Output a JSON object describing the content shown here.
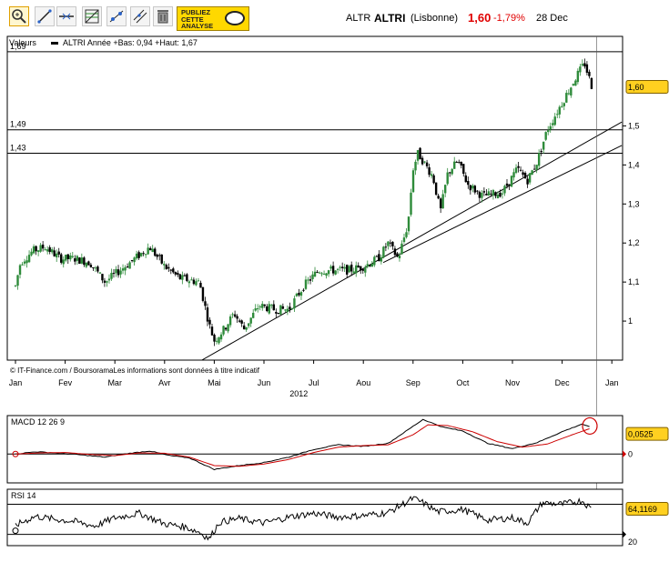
{
  "toolbar": {
    "tools": [
      {
        "icon": "zoom-icon",
        "active": true
      },
      {
        "icon": "line-draw-icon",
        "active": false
      },
      {
        "icon": "horizontal-line-icon",
        "active": false
      },
      {
        "icon": "fibonacci-icon",
        "active": false
      },
      {
        "icon": "point-line-icon",
        "active": false
      },
      {
        "icon": "parallel-line-icon",
        "active": false
      },
      {
        "icon": "trash-icon",
        "active": false
      }
    ],
    "ad_lines": [
      "PUBLIEZ",
      "CETTE",
      "ANALYSE"
    ]
  },
  "quote": {
    "code": "ALTR",
    "name": "ALTRI",
    "market": "(Lisbonne)",
    "price": "1,60",
    "change": "-1,79%",
    "date": "28 Dec"
  },
  "colors": {
    "price_pill": "#ffd020",
    "negative": "#e00000",
    "signal_line": "#cc0000",
    "candle_up": "#2e8b3a",
    "candle_down": "#000000"
  },
  "chart_data": [
    {
      "type": "candlestick",
      "title": "Valeurs",
      "legend_text": "ALTRI  Année +Bas: 0,94 +Haut: 1,67",
      "ylim": [
        0.9,
        1.72
      ],
      "x_months": [
        "Jan",
        "Fev",
        "Mar",
        "Avr",
        "Mai",
        "Jun",
        "Jul",
        "Aou",
        "Sep",
        "Oct",
        "Nov",
        "Dec",
        "Jan"
      ],
      "x_year_label": "2012",
      "y_ticks": [
        {
          "v": 1.5,
          "label": "1,5"
        },
        {
          "v": 1.4,
          "label": "1,4"
        },
        {
          "v": 1.3,
          "label": "1,3"
        },
        {
          "v": 1.2,
          "label": "1,2"
        },
        {
          "v": 1.1,
          "label": "1,1"
        },
        {
          "v": 1.0,
          "label": "1"
        }
      ],
      "levels": [
        {
          "v": 1.69,
          "label": "1,69"
        },
        {
          "v": 1.49,
          "label": "1,49"
        },
        {
          "v": 1.43,
          "label": "1,43"
        }
      ],
      "last_value": "1,60",
      "price_path": [
        {
          "m": 0.0,
          "v": 1.09
        },
        {
          "m": 0.1,
          "v": 1.15
        },
        {
          "m": 0.35,
          "v": 1.18
        },
        {
          "m": 0.6,
          "v": 1.19
        },
        {
          "m": 0.9,
          "v": 1.16
        },
        {
          "m": 1.2,
          "v": 1.16
        },
        {
          "m": 1.5,
          "v": 1.15
        },
        {
          "m": 1.8,
          "v": 1.1
        },
        {
          "m": 2.1,
          "v": 1.13
        },
        {
          "m": 2.5,
          "v": 1.17
        },
        {
          "m": 2.7,
          "v": 1.19
        },
        {
          "m": 3.0,
          "v": 1.14
        },
        {
          "m": 3.3,
          "v": 1.11
        },
        {
          "m": 3.7,
          "v": 1.1
        },
        {
          "m": 3.9,
          "v": 0.99
        },
        {
          "m": 4.0,
          "v": 0.95
        },
        {
          "m": 4.2,
          "v": 0.98
        },
        {
          "m": 4.4,
          "v": 1.02
        },
        {
          "m": 4.6,
          "v": 0.98
        },
        {
          "m": 4.9,
          "v": 1.04
        },
        {
          "m": 5.2,
          "v": 1.03
        },
        {
          "m": 5.5,
          "v": 1.03
        },
        {
          "m": 5.8,
          "v": 1.09
        },
        {
          "m": 6.1,
          "v": 1.13
        },
        {
          "m": 6.4,
          "v": 1.13
        },
        {
          "m": 6.7,
          "v": 1.13
        },
        {
          "m": 7.0,
          "v": 1.14
        },
        {
          "m": 7.3,
          "v": 1.16
        },
        {
          "m": 7.5,
          "v": 1.2
        },
        {
          "m": 7.7,
          "v": 1.16
        },
        {
          "m": 7.9,
          "v": 1.25
        },
        {
          "m": 8.0,
          "v": 1.39
        },
        {
          "m": 8.1,
          "v": 1.43
        },
        {
          "m": 8.25,
          "v": 1.4
        },
        {
          "m": 8.4,
          "v": 1.37
        },
        {
          "m": 8.55,
          "v": 1.28
        },
        {
          "m": 8.7,
          "v": 1.38
        },
        {
          "m": 8.9,
          "v": 1.41
        },
        {
          "m": 9.1,
          "v": 1.35
        },
        {
          "m": 9.4,
          "v": 1.32
        },
        {
          "m": 9.8,
          "v": 1.33
        },
        {
          "m": 10.1,
          "v": 1.39
        },
        {
          "m": 10.3,
          "v": 1.36
        },
        {
          "m": 10.5,
          "v": 1.41
        },
        {
          "m": 10.7,
          "v": 1.49
        },
        {
          "m": 11.0,
          "v": 1.56
        },
        {
          "m": 11.3,
          "v": 1.63
        },
        {
          "m": 11.45,
          "v": 1.66
        },
        {
          "m": 11.6,
          "v": 1.6
        }
      ],
      "trendlines": [
        {
          "from": {
            "m": 3.75,
            "v": 0.9
          },
          "to": {
            "m": 12.2,
            "v": 1.51
          }
        },
        {
          "from": {
            "m": 7.4,
            "v": 1.15
          },
          "to": {
            "m": 12.2,
            "v": 1.45
          }
        }
      ],
      "annotation": "© IT-Finance.com / BoursoramaLes informations sont données à titre indicatif"
    },
    {
      "type": "line",
      "title": "MACD 12 26 9",
      "ylim": [
        -0.075,
        0.1
      ],
      "y_ticks": [
        {
          "v": 0,
          "label": "0"
        }
      ],
      "last_value": "0,0525",
      "series": [
        {
          "role": "macd",
          "color": "#000000",
          "points": [
            {
              "m": 0.0,
              "v": 0.0
            },
            {
              "m": 0.4,
              "v": 0.006
            },
            {
              "m": 0.8,
              "v": 0.003
            },
            {
              "m": 1.3,
              "v": -0.002
            },
            {
              "m": 1.8,
              "v": -0.008
            },
            {
              "m": 2.3,
              "v": 0.002
            },
            {
              "m": 2.7,
              "v": 0.008
            },
            {
              "m": 3.1,
              "v": -0.004
            },
            {
              "m": 3.5,
              "v": -0.01
            },
            {
              "m": 4.0,
              "v": -0.04
            },
            {
              "m": 4.5,
              "v": -0.03
            },
            {
              "m": 5.0,
              "v": -0.022
            },
            {
              "m": 5.5,
              "v": -0.008
            },
            {
              "m": 6.0,
              "v": 0.012
            },
            {
              "m": 6.5,
              "v": 0.024
            },
            {
              "m": 7.0,
              "v": 0.02
            },
            {
              "m": 7.5,
              "v": 0.028
            },
            {
              "m": 8.0,
              "v": 0.072
            },
            {
              "m": 8.2,
              "v": 0.09
            },
            {
              "m": 8.6,
              "v": 0.07
            },
            {
              "m": 9.0,
              "v": 0.06
            },
            {
              "m": 9.5,
              "v": 0.028
            },
            {
              "m": 10.0,
              "v": 0.014
            },
            {
              "m": 10.5,
              "v": 0.03
            },
            {
              "m": 11.0,
              "v": 0.058
            },
            {
              "m": 11.4,
              "v": 0.078
            },
            {
              "m": 11.6,
              "v": 0.068
            }
          ]
        },
        {
          "role": "signal",
          "color": "#cc0000",
          "points": [
            {
              "m": 0.0,
              "v": 0.0
            },
            {
              "m": 0.5,
              "v": 0.003
            },
            {
              "m": 1.0,
              "v": 0.004
            },
            {
              "m": 1.5,
              "v": -0.001
            },
            {
              "m": 2.0,
              "v": -0.004
            },
            {
              "m": 2.5,
              "v": 0.003
            },
            {
              "m": 3.0,
              "v": 0.002
            },
            {
              "m": 3.5,
              "v": -0.008
            },
            {
              "m": 4.0,
              "v": -0.03
            },
            {
              "m": 4.5,
              "v": -0.032
            },
            {
              "m": 5.0,
              "v": -0.026
            },
            {
              "m": 5.5,
              "v": -0.014
            },
            {
              "m": 6.0,
              "v": 0.004
            },
            {
              "m": 6.5,
              "v": 0.018
            },
            {
              "m": 7.0,
              "v": 0.022
            },
            {
              "m": 7.5,
              "v": 0.024
            },
            {
              "m": 8.0,
              "v": 0.05
            },
            {
              "m": 8.3,
              "v": 0.076
            },
            {
              "m": 8.7,
              "v": 0.074
            },
            {
              "m": 9.2,
              "v": 0.058
            },
            {
              "m": 9.7,
              "v": 0.032
            },
            {
              "m": 10.2,
              "v": 0.018
            },
            {
              "m": 10.7,
              "v": 0.026
            },
            {
              "m": 11.2,
              "v": 0.05
            },
            {
              "m": 11.6,
              "v": 0.068
            }
          ]
        }
      ]
    },
    {
      "type": "line",
      "title": "RSI 14",
      "ylim": [
        15,
        90
      ],
      "y_ticks": [
        {
          "v": 20,
          "label": "20"
        }
      ],
      "levels": [
        {
          "v": 70
        },
        {
          "v": 30
        }
      ],
      "last_value": "64,1169",
      "series": [
        {
          "role": "rsi",
          "color": "#000000",
          "points": [
            {
              "m": 0.0,
              "v": 42
            },
            {
              "m": 0.4,
              "v": 54
            },
            {
              "m": 0.8,
              "v": 50
            },
            {
              "m": 1.2,
              "v": 47
            },
            {
              "m": 1.6,
              "v": 41
            },
            {
              "m": 2.0,
              "v": 52
            },
            {
              "m": 2.5,
              "v": 58
            },
            {
              "m": 3.0,
              "v": 44
            },
            {
              "m": 3.4,
              "v": 40
            },
            {
              "m": 3.7,
              "v": 33
            },
            {
              "m": 3.9,
              "v": 24
            },
            {
              "m": 4.1,
              "v": 46
            },
            {
              "m": 4.5,
              "v": 51
            },
            {
              "m": 5.0,
              "v": 45
            },
            {
              "m": 5.5,
              "v": 53
            },
            {
              "m": 6.0,
              "v": 58
            },
            {
              "m": 6.5,
              "v": 53
            },
            {
              "m": 7.0,
              "v": 55
            },
            {
              "m": 7.5,
              "v": 59
            },
            {
              "m": 8.0,
              "v": 78
            },
            {
              "m": 8.2,
              "v": 72
            },
            {
              "m": 8.5,
              "v": 60
            },
            {
              "m": 9.0,
              "v": 63
            },
            {
              "m": 9.5,
              "v": 49
            },
            {
              "m": 10.0,
              "v": 52
            },
            {
              "m": 10.3,
              "v": 45
            },
            {
              "m": 10.6,
              "v": 72
            },
            {
              "m": 11.0,
              "v": 70
            },
            {
              "m": 11.4,
              "v": 75
            },
            {
              "m": 11.6,
              "v": 63
            }
          ]
        }
      ]
    }
  ]
}
